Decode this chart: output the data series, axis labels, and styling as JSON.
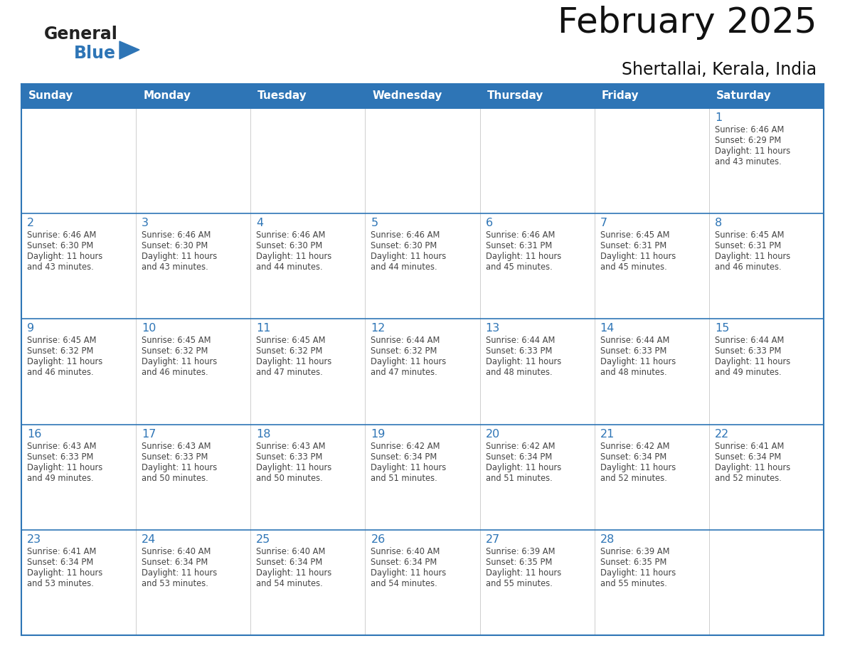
{
  "title": "February 2025",
  "subtitle": "Shertallai, Kerala, India",
  "days_of_week": [
    "Sunday",
    "Monday",
    "Tuesday",
    "Wednesday",
    "Thursday",
    "Friday",
    "Saturday"
  ],
  "header_bg": "#2E75B6",
  "header_text_color": "#FFFFFF",
  "cell_border_color": "#2E75B6",
  "day_number_color": "#2E75B6",
  "text_color": "#444444",
  "bg_color": "#FFFFFF",
  "logo_general_color": "#222222",
  "logo_blue_color": "#2E75B6",
  "calendar_data": [
    {
      "day": 1,
      "col": 6,
      "row": 0,
      "sunrise": "6:46 AM",
      "sunset": "6:29 PM",
      "daylight_hours": 11,
      "daylight_minutes": 43
    },
    {
      "day": 2,
      "col": 0,
      "row": 1,
      "sunrise": "6:46 AM",
      "sunset": "6:30 PM",
      "daylight_hours": 11,
      "daylight_minutes": 43
    },
    {
      "day": 3,
      "col": 1,
      "row": 1,
      "sunrise": "6:46 AM",
      "sunset": "6:30 PM",
      "daylight_hours": 11,
      "daylight_minutes": 43
    },
    {
      "day": 4,
      "col": 2,
      "row": 1,
      "sunrise": "6:46 AM",
      "sunset": "6:30 PM",
      "daylight_hours": 11,
      "daylight_minutes": 44
    },
    {
      "day": 5,
      "col": 3,
      "row": 1,
      "sunrise": "6:46 AM",
      "sunset": "6:30 PM",
      "daylight_hours": 11,
      "daylight_minutes": 44
    },
    {
      "day": 6,
      "col": 4,
      "row": 1,
      "sunrise": "6:46 AM",
      "sunset": "6:31 PM",
      "daylight_hours": 11,
      "daylight_minutes": 45
    },
    {
      "day": 7,
      "col": 5,
      "row": 1,
      "sunrise": "6:45 AM",
      "sunset": "6:31 PM",
      "daylight_hours": 11,
      "daylight_minutes": 45
    },
    {
      "day": 8,
      "col": 6,
      "row": 1,
      "sunrise": "6:45 AM",
      "sunset": "6:31 PM",
      "daylight_hours": 11,
      "daylight_minutes": 46
    },
    {
      "day": 9,
      "col": 0,
      "row": 2,
      "sunrise": "6:45 AM",
      "sunset": "6:32 PM",
      "daylight_hours": 11,
      "daylight_minutes": 46
    },
    {
      "day": 10,
      "col": 1,
      "row": 2,
      "sunrise": "6:45 AM",
      "sunset": "6:32 PM",
      "daylight_hours": 11,
      "daylight_minutes": 46
    },
    {
      "day": 11,
      "col": 2,
      "row": 2,
      "sunrise": "6:45 AM",
      "sunset": "6:32 PM",
      "daylight_hours": 11,
      "daylight_minutes": 47
    },
    {
      "day": 12,
      "col": 3,
      "row": 2,
      "sunrise": "6:44 AM",
      "sunset": "6:32 PM",
      "daylight_hours": 11,
      "daylight_minutes": 47
    },
    {
      "day": 13,
      "col": 4,
      "row": 2,
      "sunrise": "6:44 AM",
      "sunset": "6:33 PM",
      "daylight_hours": 11,
      "daylight_minutes": 48
    },
    {
      "day": 14,
      "col": 5,
      "row": 2,
      "sunrise": "6:44 AM",
      "sunset": "6:33 PM",
      "daylight_hours": 11,
      "daylight_minutes": 48
    },
    {
      "day": 15,
      "col": 6,
      "row": 2,
      "sunrise": "6:44 AM",
      "sunset": "6:33 PM",
      "daylight_hours": 11,
      "daylight_minutes": 49
    },
    {
      "day": 16,
      "col": 0,
      "row": 3,
      "sunrise": "6:43 AM",
      "sunset": "6:33 PM",
      "daylight_hours": 11,
      "daylight_minutes": 49
    },
    {
      "day": 17,
      "col": 1,
      "row": 3,
      "sunrise": "6:43 AM",
      "sunset": "6:33 PM",
      "daylight_hours": 11,
      "daylight_minutes": 50
    },
    {
      "day": 18,
      "col": 2,
      "row": 3,
      "sunrise": "6:43 AM",
      "sunset": "6:33 PM",
      "daylight_hours": 11,
      "daylight_minutes": 50
    },
    {
      "day": 19,
      "col": 3,
      "row": 3,
      "sunrise": "6:42 AM",
      "sunset": "6:34 PM",
      "daylight_hours": 11,
      "daylight_minutes": 51
    },
    {
      "day": 20,
      "col": 4,
      "row": 3,
      "sunrise": "6:42 AM",
      "sunset": "6:34 PM",
      "daylight_hours": 11,
      "daylight_minutes": 51
    },
    {
      "day": 21,
      "col": 5,
      "row": 3,
      "sunrise": "6:42 AM",
      "sunset": "6:34 PM",
      "daylight_hours": 11,
      "daylight_minutes": 52
    },
    {
      "day": 22,
      "col": 6,
      "row": 3,
      "sunrise": "6:41 AM",
      "sunset": "6:34 PM",
      "daylight_hours": 11,
      "daylight_minutes": 52
    },
    {
      "day": 23,
      "col": 0,
      "row": 4,
      "sunrise": "6:41 AM",
      "sunset": "6:34 PM",
      "daylight_hours": 11,
      "daylight_minutes": 53
    },
    {
      "day": 24,
      "col": 1,
      "row": 4,
      "sunrise": "6:40 AM",
      "sunset": "6:34 PM",
      "daylight_hours": 11,
      "daylight_minutes": 53
    },
    {
      "day": 25,
      "col": 2,
      "row": 4,
      "sunrise": "6:40 AM",
      "sunset": "6:34 PM",
      "daylight_hours": 11,
      "daylight_minutes": 54
    },
    {
      "day": 26,
      "col": 3,
      "row": 4,
      "sunrise": "6:40 AM",
      "sunset": "6:34 PM",
      "daylight_hours": 11,
      "daylight_minutes": 54
    },
    {
      "day": 27,
      "col": 4,
      "row": 4,
      "sunrise": "6:39 AM",
      "sunset": "6:35 PM",
      "daylight_hours": 11,
      "daylight_minutes": 55
    },
    {
      "day": 28,
      "col": 5,
      "row": 4,
      "sunrise": "6:39 AM",
      "sunset": "6:35 PM",
      "daylight_hours": 11,
      "daylight_minutes": 55
    }
  ]
}
